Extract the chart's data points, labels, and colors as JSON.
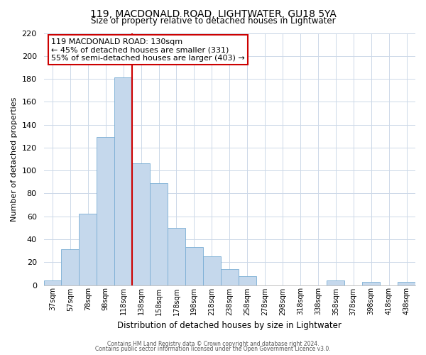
{
  "title": "119, MACDONALD ROAD, LIGHTWATER, GU18 5YA",
  "subtitle": "Size of property relative to detached houses in Lightwater",
  "xlabel": "Distribution of detached houses by size in Lightwater",
  "ylabel": "Number of detached properties",
  "bar_labels": [
    "37sqm",
    "57sqm",
    "78sqm",
    "98sqm",
    "118sqm",
    "138sqm",
    "158sqm",
    "178sqm",
    "198sqm",
    "218sqm",
    "238sqm",
    "258sqm",
    "278sqm",
    "298sqm",
    "318sqm",
    "338sqm",
    "358sqm",
    "378sqm",
    "398sqm",
    "418sqm",
    "438sqm"
  ],
  "bar_heights": [
    4,
    31,
    62,
    129,
    181,
    106,
    89,
    50,
    33,
    25,
    14,
    8,
    0,
    0,
    0,
    0,
    4,
    0,
    3,
    0,
    3
  ],
  "bar_color": "#c5d8ec",
  "bar_edge_color": "#7aadd4",
  "vline_x": 5.0,
  "vline_color": "#cc0000",
  "annotation_title": "119 MACDONALD ROAD: 130sqm",
  "annotation_line1": "← 45% of detached houses are smaller (331)",
  "annotation_line2": "55% of semi-detached houses are larger (403) →",
  "ylim": [
    0,
    220
  ],
  "yticks": [
    0,
    20,
    40,
    60,
    80,
    100,
    120,
    140,
    160,
    180,
    200,
    220
  ],
  "footer1": "Contains HM Land Registry data © Crown copyright and database right 2024.",
  "footer2": "Contains public sector information licensed under the Open Government Licence v3.0.",
  "bar_width": 1.0,
  "figsize": [
    6.0,
    5.0
  ],
  "dpi": 100
}
